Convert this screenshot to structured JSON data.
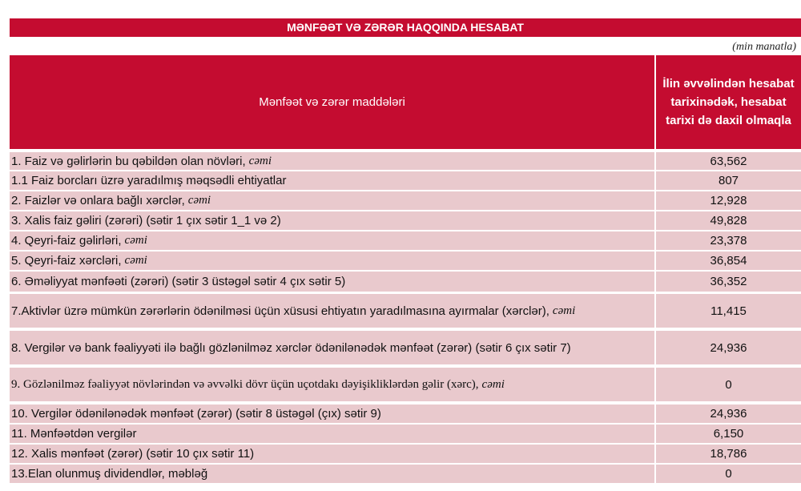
{
  "title": "MƏNFƏƏT VƏ ZƏRƏR HAQQINDA HESABAT",
  "unit": "(min manatla)",
  "header": {
    "col1": "Mənfəət və zərər maddələri",
    "col2": "İlin əvvəlindən hesabat tarixinədək, hesabat tarixi də daxil olmaqla"
  },
  "colors": {
    "header_bg": "#c40c30",
    "row_bg": "#e9c9cd"
  },
  "rows": [
    {
      "label": "1. Faiz və gəlirlərin bu qəbildən olan növləri,",
      "suffix": "cəmi",
      "value": "63,562"
    },
    {
      "label": "1.1 Faiz borcları üzrə yaradılmış məqsədli ehtiyatlar",
      "suffix": "",
      "value": "807"
    },
    {
      "label": "2. Faizlər və onlara bağlı xərclər,",
      "suffix": "cəmi",
      "value": "12,928"
    },
    {
      "label": "3. Xalis faiz gəliri (zərəri) (sətir 1 çıx sətir 1_1 və 2)",
      "suffix": "",
      "value": "49,828"
    },
    {
      "label": "4. Qeyri-faiz gəlirləri,",
      "suffix": "cəmi",
      "value": "23,378"
    },
    {
      "label": "5. Qeyri-faiz xərcləri,",
      "suffix": "cəmi",
      "value": "36,854"
    },
    {
      "label": "6. Əməliyyat mənfəəti (zərəri) (sətir 3 üstəgəl sətir 4 çıx sətir 5)",
      "suffix": "",
      "value": "36,352"
    },
    {
      "label": "7.Aktivlər üzrə mümkün zərərlərin ödənilməsi üçün xüsusi ehtiyatın yaradılmasına ayırmalar (xərclər),",
      "suffix": "cəmi",
      "value": "11,415"
    },
    {
      "label": "8. Vergilər və bank fəaliyyəti ilə bağlı gözlənilməz xərclər ödənilənədək mənfəət (zərər) (sətir 6 çıx sətir 7)",
      "suffix": "",
      "value": "24,936"
    },
    {
      "label": "9. Gözlənilməz fəaliyyət növlərindən və əvvəlki dövr üçün uçotdakı dəyişikliklərdən gəlir (xərc),",
      "suffix": "cəmi",
      "value": "0"
    },
    {
      "label": "10. Vergilər ödənilənədək mənfəət (zərər) (sətir 8 üstəgəl (çıx) sətir 9)",
      "suffix": "",
      "value": "24,936"
    },
    {
      "label": "11. Mənfəətdən vergilər",
      "suffix": "",
      "value": "6,150"
    },
    {
      "label": "12. Xalis mənfəət (zərər) (sətir 10 çıx sətir 11)",
      "suffix": "",
      "value": "18,786"
    },
    {
      "label": "13.Elan olunmuş dividendlər, məbləğ",
      "suffix": "",
      "value": "0"
    }
  ]
}
